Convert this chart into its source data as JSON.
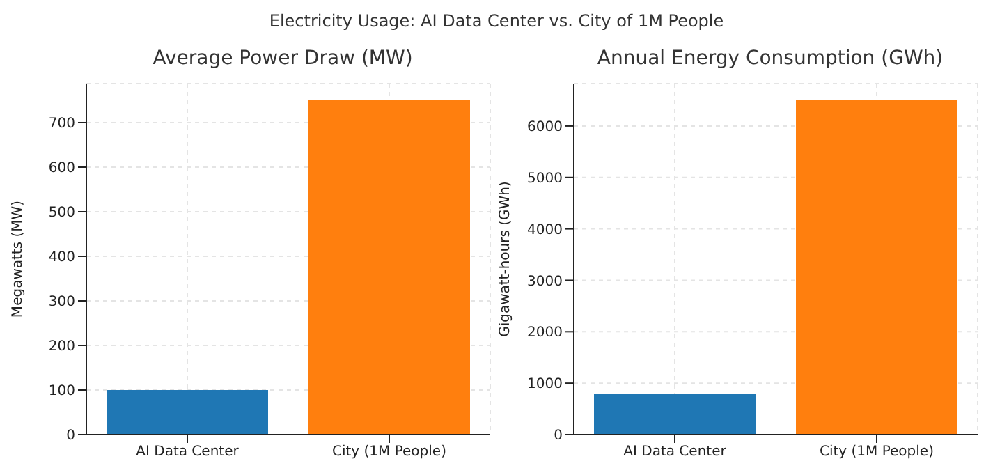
{
  "chart_data": [
    {
      "type": "bar",
      "title": "Average Power Draw (MW)",
      "ylabel": "Megawatts (MW)",
      "annotations": [
        "Electricity Usage: AI Data Center vs. City of 1M People"
      ],
      "categories": [
        "AI Data Center",
        "City (1M People)"
      ],
      "values": [
        100,
        750
      ],
      "colors": [
        "#1f77b4",
        "#ff7f0e"
      ],
      "ylim": [
        0,
        787.5
      ],
      "yticks": [
        0,
        100,
        200,
        300,
        400,
        500,
        600,
        700
      ],
      "grid": true
    },
    {
      "type": "bar",
      "title": "Annual Energy Consumption (GWh)",
      "ylabel": "Gigawatt-hours (GWh)",
      "categories": [
        "AI Data Center",
        "City (1M People)"
      ],
      "values": [
        800,
        6500
      ],
      "colors": [
        "#1f77b4",
        "#ff7f0e"
      ],
      "ylim": [
        0,
        6825
      ],
      "yticks": [
        0,
        1000,
        2000,
        3000,
        4000,
        5000,
        6000
      ],
      "grid": true
    }
  ]
}
